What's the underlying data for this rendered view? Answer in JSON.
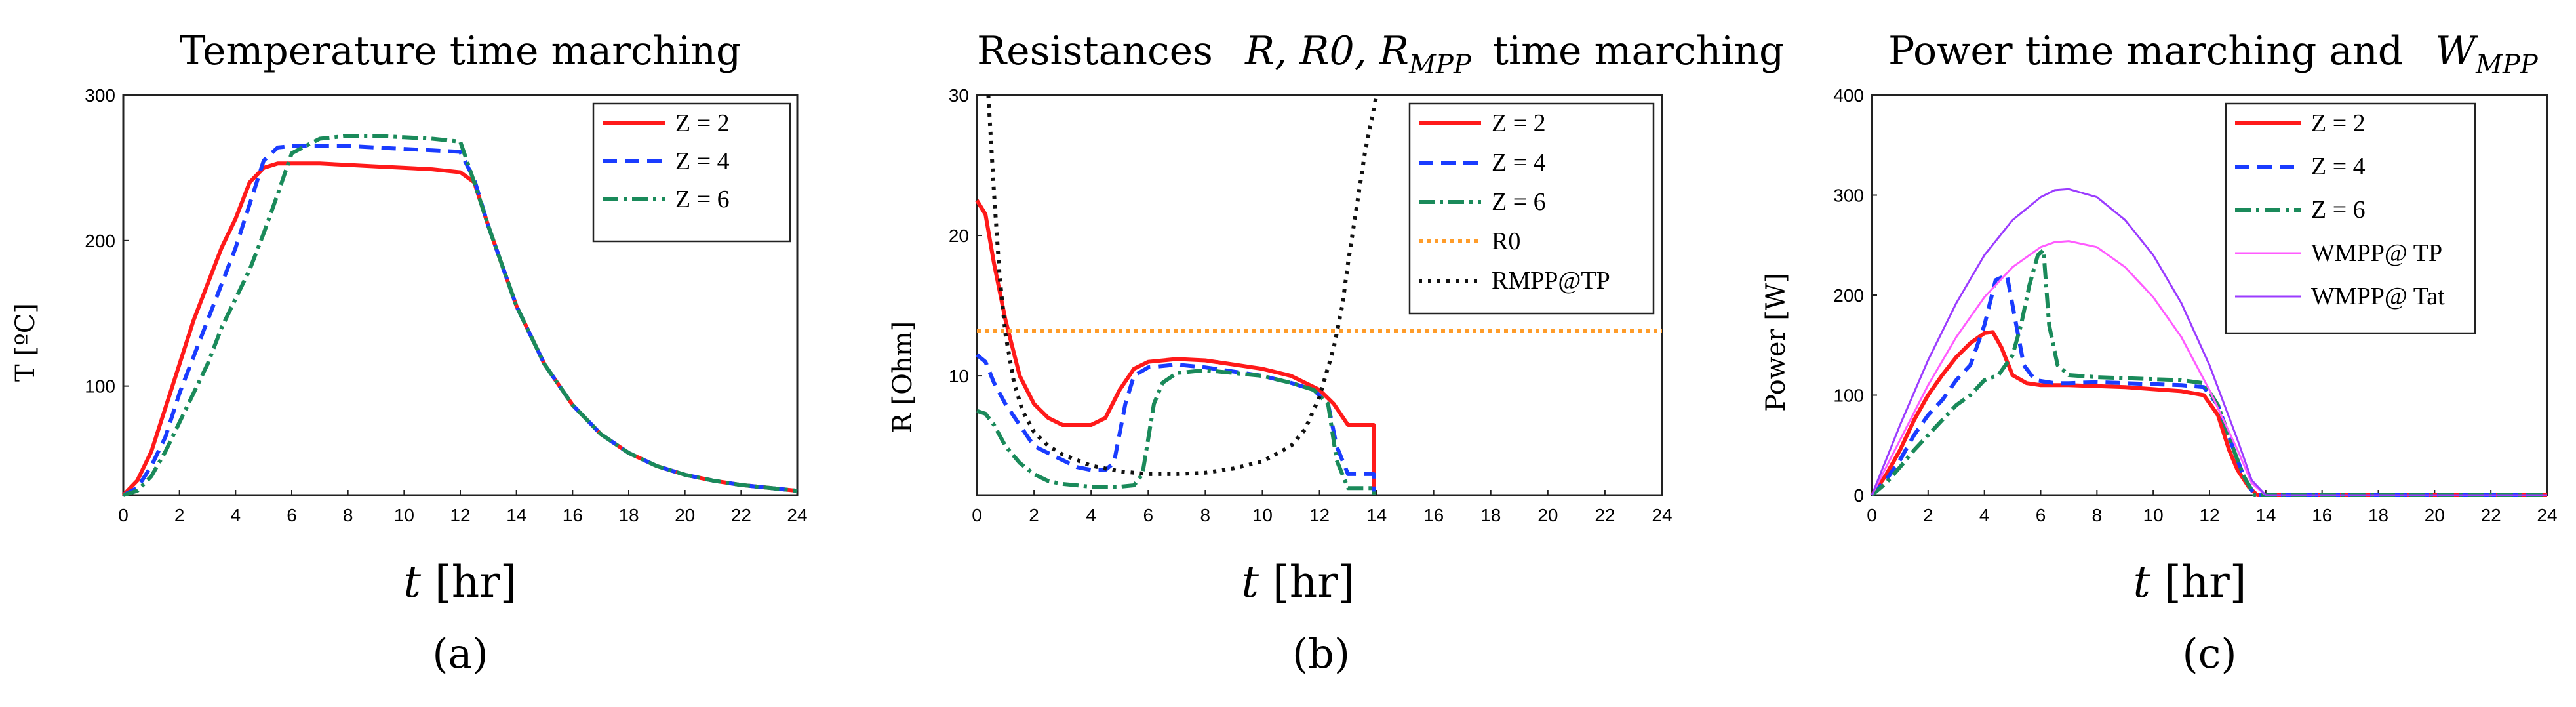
{
  "chart_data": [
    {
      "type": "line",
      "panel": "a",
      "title": "Temperature time marching",
      "xlabel": "t [hr]",
      "ylabel": "T [ºC]",
      "caption": "(a)",
      "xlim": [
        0,
        24
      ],
      "ylim": [
        25,
        300
      ],
      "xticks": [
        0,
        2,
        4,
        6,
        8,
        10,
        12,
        14,
        16,
        18,
        20,
        22,
        24
      ],
      "yticks": [
        100,
        200,
        300
      ],
      "legend_position": "top-right",
      "series": [
        {
          "name": "Z = 2",
          "color": "#ff1a1a",
          "dash": "solid",
          "width": 6,
          "x": [
            0,
            0.5,
            1,
            1.5,
            2,
            2.5,
            3,
            3.5,
            4,
            4.5,
            5,
            5.5,
            6,
            7,
            8,
            9,
            10,
            11,
            12,
            12.5,
            13,
            14,
            15,
            16,
            17,
            18,
            19,
            20,
            21,
            22,
            23,
            24
          ],
          "y": [
            25,
            35,
            55,
            85,
            115,
            145,
            170,
            195,
            215,
            240,
            250,
            253,
            253,
            253,
            252,
            251,
            250,
            249,
            247,
            240,
            210,
            155,
            115,
            87,
            67,
            54,
            45,
            39,
            35,
            32,
            30,
            28
          ]
        },
        {
          "name": "Z = 4",
          "color": "#1a3cff",
          "dash": "22,12",
          "width": 6,
          "x": [
            0,
            0.5,
            1,
            1.5,
            2,
            2.5,
            3,
            3.5,
            4,
            4.5,
            5,
            5.5,
            6,
            7,
            8,
            9,
            10,
            11,
            12,
            12.5,
            13,
            14,
            15,
            16,
            17,
            18,
            19,
            20,
            21,
            22,
            23,
            24
          ],
          "y": [
            25,
            30,
            45,
            65,
            95,
            120,
            145,
            170,
            195,
            225,
            255,
            264,
            265,
            265,
            265,
            264,
            263,
            262,
            261,
            242,
            210,
            155,
            115,
            87,
            67,
            54,
            45,
            39,
            35,
            32,
            30,
            28
          ]
        },
        {
          "name": "Z = 6",
          "color": "#1a8a5a",
          "dash": "24,8,5,8",
          "width": 6,
          "x": [
            0,
            0.5,
            1,
            1.5,
            2,
            2.5,
            3,
            3.5,
            4,
            4.5,
            5,
            5.5,
            6,
            7,
            8,
            9,
            10,
            11,
            12,
            12.5,
            13,
            14,
            15,
            16,
            17,
            18,
            19,
            20,
            21,
            22,
            23,
            24
          ],
          "y": [
            25,
            28,
            38,
            55,
            75,
            95,
            115,
            140,
            160,
            180,
            205,
            232,
            260,
            270,
            272,
            272,
            271,
            270,
            268,
            240,
            210,
            155,
            115,
            87,
            67,
            54,
            45,
            39,
            35,
            32,
            30,
            28
          ]
        }
      ]
    },
    {
      "type": "line",
      "panel": "b",
      "title_prefix": "Resistances",
      "title_math": "R, R0, R",
      "title_sub": "MPP",
      "title_suffix": "time marching",
      "xlabel": "t [hr]",
      "ylabel": "R [Ohm]",
      "caption": "(b)",
      "xlim": [
        0,
        24
      ],
      "ylim": [
        1.5,
        30
      ],
      "xticks": [
        0,
        2,
        4,
        6,
        8,
        10,
        12,
        14,
        16,
        18,
        20,
        22,
        24
      ],
      "yticks": [
        10,
        20,
        30
      ],
      "legend_position": "top-right",
      "series": [
        {
          "name": "Z = 2",
          "color": "#ff1a1a",
          "dash": "solid",
          "width": 6,
          "x": [
            0,
            0.3,
            0.6,
            1,
            1.5,
            2,
            2.5,
            3,
            4,
            4.5,
            5,
            5.5,
            6,
            7,
            8,
            9,
            10,
            11,
            12,
            12.5,
            13,
            13.6,
            13.9,
            13.9
          ],
          "y": [
            22.5,
            21.5,
            18,
            14,
            10,
            8,
            7,
            6.5,
            6.5,
            7,
            9,
            10.5,
            11,
            11.2,
            11.1,
            10.8,
            10.5,
            10,
            9,
            8,
            6.5,
            6.5,
            6.5,
            1.5
          ]
        },
        {
          "name": "Z = 4",
          "color": "#1a3cff",
          "dash": "22,12",
          "width": 6,
          "x": [
            0,
            0.3,
            0.6,
            1,
            1.5,
            2,
            2.5,
            3,
            3.5,
            4,
            4.5,
            4.8,
            5.2,
            5.5,
            6,
            7,
            8,
            9,
            10,
            11,
            11.8,
            12.3,
            12.6,
            13,
            13.6,
            13.9,
            13.9
          ],
          "y": [
            11.5,
            11,
            9.5,
            8,
            6.5,
            5,
            4.5,
            4,
            3.5,
            3.3,
            3.3,
            3.8,
            8,
            10,
            10.6,
            10.8,
            10.6,
            10.3,
            10,
            9.5,
            9,
            8,
            5,
            3,
            3,
            3,
            1.5
          ]
        },
        {
          "name": "Z = 6",
          "color": "#1a8a5a",
          "dash": "24,8,5,8",
          "width": 6,
          "x": [
            0,
            0.3,
            0.6,
            1,
            1.5,
            2,
            2.5,
            3,
            3.5,
            4,
            5,
            5.5,
            5.8,
            6.2,
            6.5,
            7,
            8,
            9,
            10,
            11,
            11.8,
            12.3,
            12.6,
            13,
            13.6,
            13.9,
            13.9
          ],
          "y": [
            7.5,
            7.3,
            6.5,
            5,
            3.8,
            3,
            2.5,
            2.3,
            2.2,
            2.1,
            2.1,
            2.2,
            3,
            8,
            9.5,
            10.2,
            10.4,
            10.2,
            10,
            9.5,
            9,
            8,
            4,
            2,
            2,
            2,
            1.5
          ]
        },
        {
          "name": "R0",
          "color": "#ff9c2a",
          "dash": "6,6",
          "width": 6,
          "x": [
            0,
            24
          ],
          "y": [
            13.2,
            13.2
          ]
        },
        {
          "name": "RMPP@TP",
          "color": "#111111",
          "dash": "5,9",
          "width": 6,
          "x": [
            0.4,
            0.6,
            0.8,
            1,
            1.3,
            1.6,
            2,
            2.5,
            3,
            4,
            5,
            6,
            7,
            8,
            9,
            10,
            11,
            11.5,
            12,
            12.5,
            12.8,
            13,
            13.3,
            13.6,
            14
          ],
          "y": [
            30,
            23,
            17,
            13,
            9.5,
            7.5,
            6,
            5,
            4.4,
            3.6,
            3.2,
            3.0,
            3.0,
            3.1,
            3.4,
            3.9,
            5,
            6.2,
            8.5,
            12,
            15,
            18,
            22,
            26,
            30
          ]
        }
      ]
    },
    {
      "type": "line",
      "panel": "c",
      "title_prefix": "Power time marching and",
      "title_math": "W",
      "title_sub": "MPP",
      "xlabel": "t [hr]",
      "ylabel": "Power [W]",
      "caption": "(c)",
      "xlim": [
        0,
        24
      ],
      "ylim": [
        0,
        400
      ],
      "xticks": [
        0,
        2,
        4,
        6,
        8,
        10,
        12,
        14,
        16,
        18,
        20,
        22,
        24
      ],
      "yticks": [
        0,
        100,
        200,
        300,
        400
      ],
      "legend_position": "top-right",
      "series": [
        {
          "name": "Z = 2",
          "color": "#ff1a1a",
          "dash": "solid",
          "width": 6,
          "x": [
            0,
            0.5,
            1,
            1.5,
            2,
            2.5,
            3,
            3.5,
            4,
            4.3,
            4.6,
            5,
            5.5,
            6,
            7,
            8,
            9,
            10,
            11,
            11.8,
            12.3,
            12.7,
            13,
            13.4,
            13.7,
            14,
            24
          ],
          "y": [
            0,
            20,
            45,
            75,
            100,
            120,
            138,
            152,
            162,
            163,
            148,
            120,
            112,
            110,
            110,
            109,
            108,
            106,
            104,
            100,
            80,
            45,
            25,
            8,
            0,
            0,
            0
          ]
        },
        {
          "name": "Z = 4",
          "color": "#1a3cff",
          "dash": "22,12",
          "width": 6,
          "x": [
            0,
            0.5,
            1,
            1.5,
            2,
            2.5,
            3,
            3.5,
            4,
            4.4,
            4.8,
            5.1,
            5.4,
            5.8,
            6.5,
            7,
            8,
            9,
            10,
            11,
            11.8,
            12.3,
            12.8,
            13.2,
            13.6,
            14,
            24
          ],
          "y": [
            0,
            15,
            35,
            60,
            80,
            95,
            115,
            130,
            170,
            215,
            220,
            175,
            130,
            115,
            112,
            112,
            113,
            112,
            111,
            110,
            108,
            90,
            50,
            20,
            0,
            0,
            0
          ]
        },
        {
          "name": "Z = 6",
          "color": "#1a8a5a",
          "dash": "24,8,5,8",
          "width": 6,
          "x": [
            0,
            0.5,
            1,
            1.5,
            2,
            2.5,
            3,
            3.5,
            4,
            4.5,
            5,
            5.3,
            5.6,
            5.9,
            6.1,
            6.3,
            6.6,
            7,
            8,
            9,
            10,
            11,
            11.8,
            12.3,
            12.8,
            13.2,
            13.6,
            14,
            24
          ],
          "y": [
            0,
            12,
            28,
            45,
            60,
            75,
            90,
            100,
            115,
            120,
            140,
            170,
            210,
            240,
            245,
            170,
            130,
            120,
            118,
            117,
            116,
            115,
            112,
            90,
            50,
            20,
            0,
            0,
            0
          ]
        },
        {
          "name": "WMPP@ TP",
          "color": "#ff5cff",
          "dash": "solid",
          "width": 3,
          "x": [
            0,
            1,
            2,
            3,
            4,
            5,
            6,
            6.5,
            7,
            8,
            9,
            10,
            11,
            12,
            13,
            13.5,
            14,
            24
          ],
          "y": [
            0,
            55,
            110,
            158,
            198,
            228,
            248,
            253,
            254,
            248,
            228,
            198,
            158,
            105,
            45,
            12,
            0,
            0
          ]
        },
        {
          "name": "WMPP@ Tat",
          "color": "#9b3cff",
          "dash": "solid",
          "width": 3,
          "x": [
            0,
            1,
            2,
            3,
            4,
            5,
            6,
            6.5,
            7,
            8,
            9,
            10,
            11,
            12,
            13,
            13.5,
            14,
            24
          ],
          "y": [
            0,
            70,
            135,
            192,
            240,
            275,
            298,
            305,
            306,
            298,
            275,
            240,
            192,
            130,
            55,
            15,
            0,
            0
          ]
        }
      ]
    }
  ]
}
